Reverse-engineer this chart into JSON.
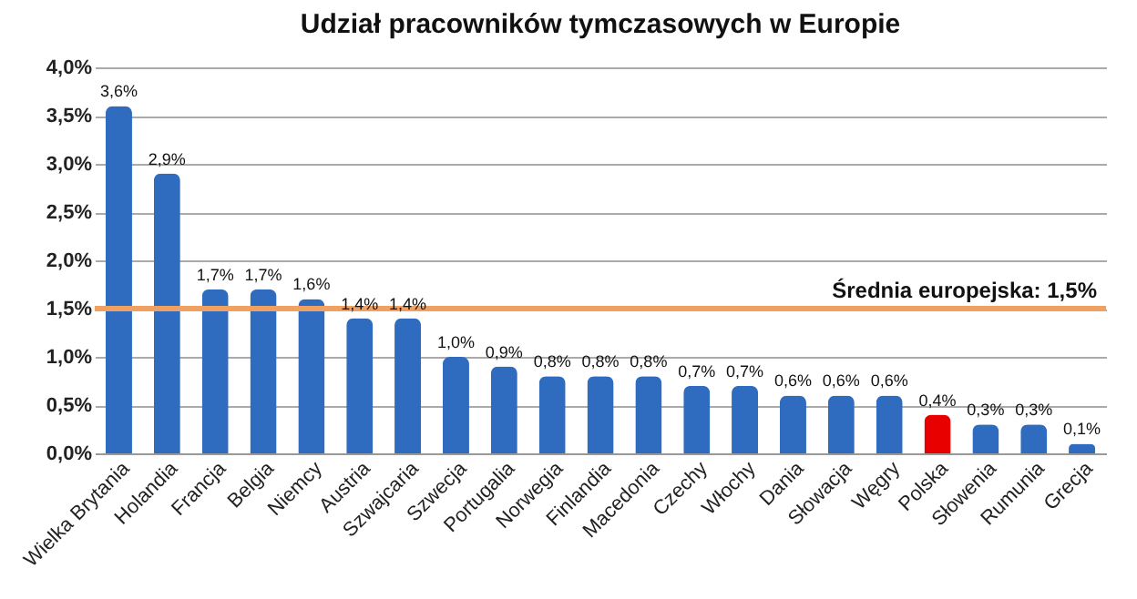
{
  "chart_data": {
    "type": "bar",
    "title": "Udział pracowników tymczasowych w Europie",
    "categories": [
      "Wielka Brytania",
      "Holandia",
      "Francja",
      "Belgia",
      "Niemcy",
      "Austria",
      "Szwajcaria",
      "Szwecja",
      "Portugalia",
      "Norwegia",
      "Finlandia",
      "Macedonia",
      "Czechy",
      "Włochy",
      "Dania",
      "Słowacja",
      "Węgry",
      "Polska",
      "Słowenia",
      "Rumunia",
      "Grecja"
    ],
    "values": [
      3.6,
      2.9,
      1.7,
      1.7,
      1.6,
      1.4,
      1.4,
      1.0,
      0.9,
      0.8,
      0.8,
      0.8,
      0.7,
      0.7,
      0.6,
      0.6,
      0.6,
      0.4,
      0.3,
      0.3,
      0.1
    ],
    "colors": [
      "#2f6cc0",
      "#2f6cc0",
      "#2f6cc0",
      "#2f6cc0",
      "#2f6cc0",
      "#2f6cc0",
      "#2f6cc0",
      "#2f6cc0",
      "#2f6cc0",
      "#2f6cc0",
      "#2f6cc0",
      "#2f6cc0",
      "#2f6cc0",
      "#2f6cc0",
      "#2f6cc0",
      "#2f6cc0",
      "#2f6cc0",
      "#e80000",
      "#2f6cc0",
      "#2f6cc0",
      "#2f6cc0"
    ],
    "value_labels": [
      "3,6%",
      "2,9%",
      "1,7%",
      "1,7%",
      "1,6%",
      "1,4%",
      "1,4%",
      "1,0%",
      "0,9%",
      "0,8%",
      "0,8%",
      "0,8%",
      "0,7%",
      "0,7%",
      "0,6%",
      "0,6%",
      "0,6%",
      "0,4%",
      "0,3%",
      "0,3%",
      "0,1%"
    ],
    "ylim": [
      0,
      4
    ],
    "yticks": [
      {
        "value": 0,
        "label": "0,0%"
      },
      {
        "value": 0.5,
        "label": "0,5%"
      },
      {
        "value": 1,
        "label": "1,0%"
      },
      {
        "value": 1.5,
        "label": "1,5%"
      },
      {
        "value": 2,
        "label": "2,0%"
      },
      {
        "value": 2.5,
        "label": "2,5%"
      },
      {
        "value": 3,
        "label": "3,0%"
      },
      {
        "value": 3.5,
        "label": "3,5%"
      },
      {
        "value": 4,
        "label": "4,0%"
      }
    ],
    "ref_lines": [
      {
        "axis": "y",
        "value": 1.5,
        "label": "Średnia europejska: 1,5%",
        "color": "#f0a060"
      }
    ],
    "grid": "y"
  }
}
